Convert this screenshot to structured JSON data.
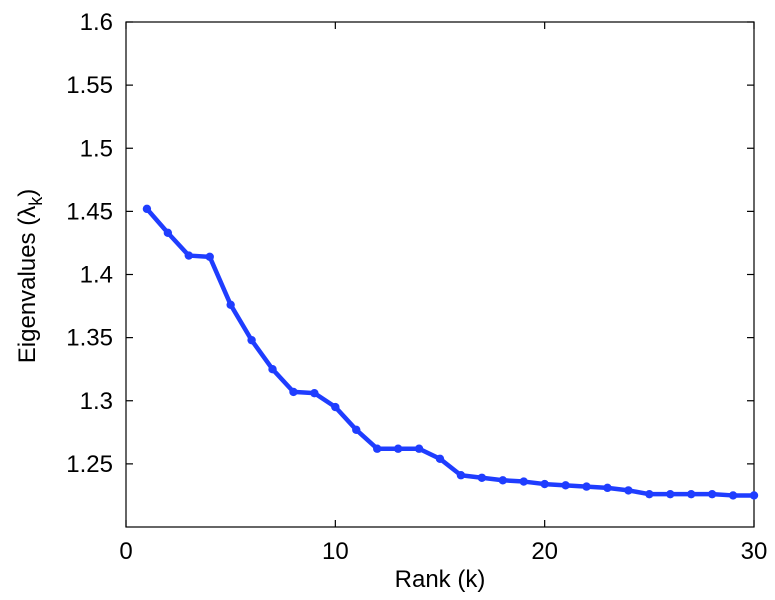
{
  "chart_data": {
    "type": "line",
    "xlabel": "Rank (k)",
    "ylabel": {
      "main": "Eigenvalues (",
      "symbol": "λ",
      "subscript": "k",
      "close": ")"
    },
    "xlim": [
      0,
      30
    ],
    "ylim": [
      1.2,
      1.6
    ],
    "xticks": [
      0,
      10,
      20,
      30
    ],
    "yticks": [
      1.25,
      1.3,
      1.35,
      1.4,
      1.45,
      1.5,
      1.55,
      1.6
    ],
    "ytick_labels": [
      "1.25",
      "1.3",
      "1.35",
      "1.4",
      "1.45",
      "1.5",
      "1.55",
      "1.6"
    ],
    "grid": false,
    "series": [
      {
        "color": "#1f3dff",
        "marker": "circle",
        "x": [
          1,
          2,
          3,
          4,
          5,
          6,
          7,
          8,
          9,
          10,
          11,
          12,
          13,
          14,
          15,
          16,
          17,
          18,
          19,
          20,
          21,
          22,
          23,
          24,
          25,
          26,
          27,
          28,
          29,
          30
        ],
        "y": [
          1.452,
          1.433,
          1.415,
          1.414,
          1.376,
          1.348,
          1.325,
          1.307,
          1.306,
          1.295,
          1.277,
          1.262,
          1.262,
          1.262,
          1.254,
          1.241,
          1.239,
          1.237,
          1.236,
          1.234,
          1.233,
          1.232,
          1.231,
          1.229,
          1.226,
          1.226,
          1.226,
          1.226,
          1.225,
          1.225
        ]
      }
    ]
  }
}
